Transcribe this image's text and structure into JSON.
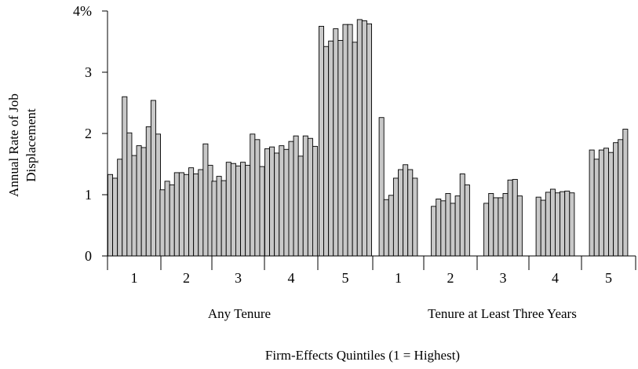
{
  "chart_data": {
    "type": "bar",
    "title": "",
    "ylabel_lines": [
      "Annual Rate of Job",
      "Displacement"
    ],
    "xlabel": "Firm-Effects Quintiles (1 = Highest)",
    "ylim": [
      0,
      4
    ],
    "y_ticks": [
      {
        "value": 0,
        "label": "0"
      },
      {
        "value": 1,
        "label": "1"
      },
      {
        "value": 2,
        "label": "2"
      },
      {
        "value": 3,
        "label": "3"
      },
      {
        "value": 4,
        "label": "4%"
      }
    ],
    "bar_color": "#c8c8c8",
    "groups": [
      {
        "label": "Any Tenure",
        "quintiles": [
          {
            "label": "1",
            "values": [
              1.33,
              1.27,
              1.58,
              2.6,
              2.01,
              1.64,
              1.8,
              1.77,
              2.11,
              2.54,
              1.99
            ]
          },
          {
            "label": "2",
            "values": [
              1.08,
              1.22,
              1.16,
              1.36,
              1.36,
              1.33,
              1.44,
              1.34,
              1.41,
              1.83,
              1.48
            ]
          },
          {
            "label": "3",
            "values": [
              1.22,
              1.3,
              1.23,
              1.53,
              1.51,
              1.47,
              1.53,
              1.48,
              1.99,
              1.9,
              1.46
            ]
          },
          {
            "label": "4",
            "values": [
              1.75,
              1.78,
              1.68,
              1.8,
              1.74,
              1.87,
              1.96,
              1.63,
              1.96,
              1.92,
              1.79
            ]
          },
          {
            "label": "5",
            "values": [
              3.75,
              3.42,
              3.51,
              3.71,
              3.52,
              3.78,
              3.78,
              3.49,
              3.86,
              3.84,
              3.79
            ]
          }
        ]
      },
      {
        "label": "Tenure at Least Three Years",
        "quintiles": [
          {
            "label": "1",
            "values": [
              2.26,
              0.92,
              0.99,
              1.27,
              1.41,
              1.49,
              1.41,
              1.27
            ]
          },
          {
            "label": "2",
            "values": [
              0.81,
              0.93,
              0.9,
              1.02,
              0.86,
              0.98,
              1.34,
              1.16
            ]
          },
          {
            "label": "3",
            "values": [
              0.86,
              1.02,
              0.95,
              0.95,
              1.02,
              1.24,
              1.25,
              0.98
            ]
          },
          {
            "label": "4",
            "values": [
              0.96,
              0.91,
              1.04,
              1.09,
              1.03,
              1.05,
              1.06,
              1.03
            ]
          },
          {
            "label": "5",
            "values": [
              1.73,
              1.58,
              1.73,
              1.76,
              1.69,
              1.85,
              1.9,
              2.07
            ]
          }
        ]
      }
    ]
  }
}
